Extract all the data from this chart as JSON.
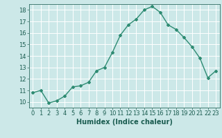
{
  "x": [
    0,
    1,
    2,
    3,
    4,
    5,
    6,
    7,
    8,
    9,
    10,
    11,
    12,
    13,
    14,
    15,
    16,
    17,
    18,
    19,
    20,
    21,
    22,
    23
  ],
  "y": [
    10.8,
    11.0,
    9.9,
    10.1,
    10.5,
    11.3,
    11.4,
    11.7,
    12.7,
    13.0,
    14.3,
    15.8,
    16.7,
    17.2,
    18.0,
    18.3,
    17.8,
    16.7,
    16.3,
    15.6,
    14.8,
    13.8,
    12.1,
    12.7
  ],
  "line_color": "#2e8b72",
  "marker": "D",
  "markersize": 2.0,
  "bg_color": "#cce8e8",
  "grid_color": "#ffffff",
  "xlabel": "Humidex (Indice chaleur)",
  "xlim": [
    -0.5,
    23.5
  ],
  "ylim": [
    9.5,
    18.5
  ],
  "yticks": [
    10,
    11,
    12,
    13,
    14,
    15,
    16,
    17,
    18
  ],
  "xticks": [
    0,
    1,
    2,
    3,
    4,
    5,
    6,
    7,
    8,
    9,
    10,
    11,
    12,
    13,
    14,
    15,
    16,
    17,
    18,
    19,
    20,
    21,
    22,
    23
  ],
  "tick_color": "#2e6b60",
  "label_color": "#1a5c50",
  "xlabel_fontsize": 7,
  "tick_fontsize": 6,
  "linewidth": 1.0
}
